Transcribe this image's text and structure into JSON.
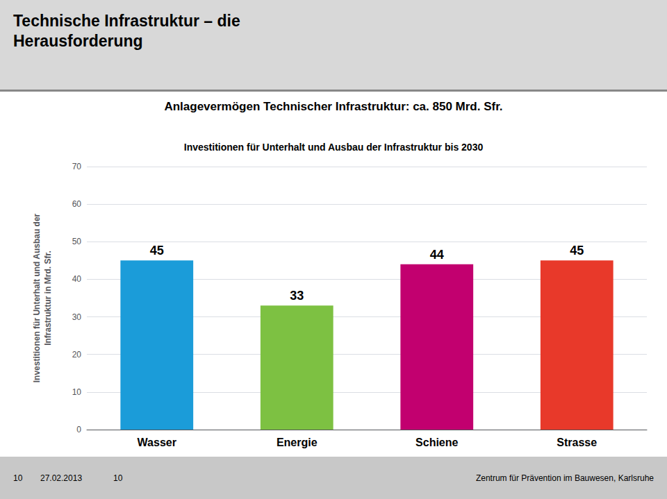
{
  "chart_data": {
    "type": "bar",
    "title": "Anlagevermögen Technischer Infrastruktur: ca. 850 Mrd. Sfr.",
    "subtitle": "Investitionen für Unterhalt und Ausbau der Infrastruktur bis 2030",
    "ylabel": "Investitionen für Unterhalt und Ausbau der\nInfrastruktur in Mrd. Sfr.",
    "categories": [
      "Wasser",
      "Energie",
      "Schiene",
      "Strasse"
    ],
    "values": [
      45,
      33,
      44,
      45
    ],
    "colors": [
      "#1B9CD9",
      "#7DC142",
      "#C2006F",
      "#E8392A"
    ],
    "ylim": [
      0,
      70
    ],
    "yticks": [
      0,
      10,
      20,
      30,
      40,
      50,
      60,
      70
    ],
    "grid": true,
    "data_labels": true,
    "annotations": [
      "Technische Infrastruktur – die",
      "Herausforderung",
      "10",
      "27.02.2013",
      "10",
      "Zentrum für Prävention im Bauwesen, Karlsruhe"
    ]
  }
}
